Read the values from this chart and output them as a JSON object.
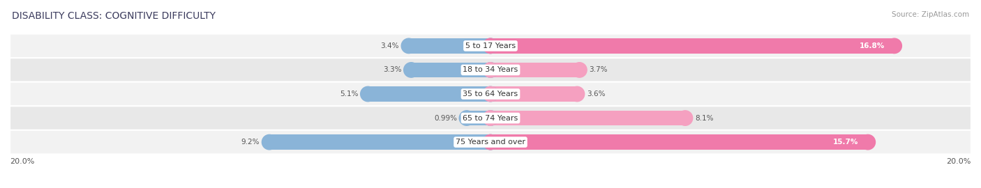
{
  "title": "DISABILITY CLASS: COGNITIVE DIFFICULTY",
  "source": "Source: ZipAtlas.com",
  "categories": [
    "5 to 17 Years",
    "18 to 34 Years",
    "35 to 64 Years",
    "65 to 74 Years",
    "75 Years and over"
  ],
  "male_values": [
    3.4,
    3.3,
    5.1,
    0.99,
    9.2
  ],
  "female_values": [
    16.8,
    3.7,
    3.6,
    8.1,
    15.7
  ],
  "male_color": "#8ab4d8",
  "female_color": "#f07aaa",
  "female_color_light": "#f5a0c0",
  "row_bg_colors": [
    "#f2f2f2",
    "#e8e8e8",
    "#f2f2f2",
    "#e8e8e8",
    "#f2f2f2"
  ],
  "max_val": 20.0,
  "axis_label_left": "20.0%",
  "axis_label_right": "20.0%",
  "title_fontsize": 10,
  "source_fontsize": 7.5,
  "label_fontsize": 8,
  "category_fontsize": 8,
  "legend_fontsize": 8.5,
  "value_fontsize": 7.5,
  "title_color": "#3a3a5c",
  "source_color": "#999999",
  "text_color": "#555555"
}
